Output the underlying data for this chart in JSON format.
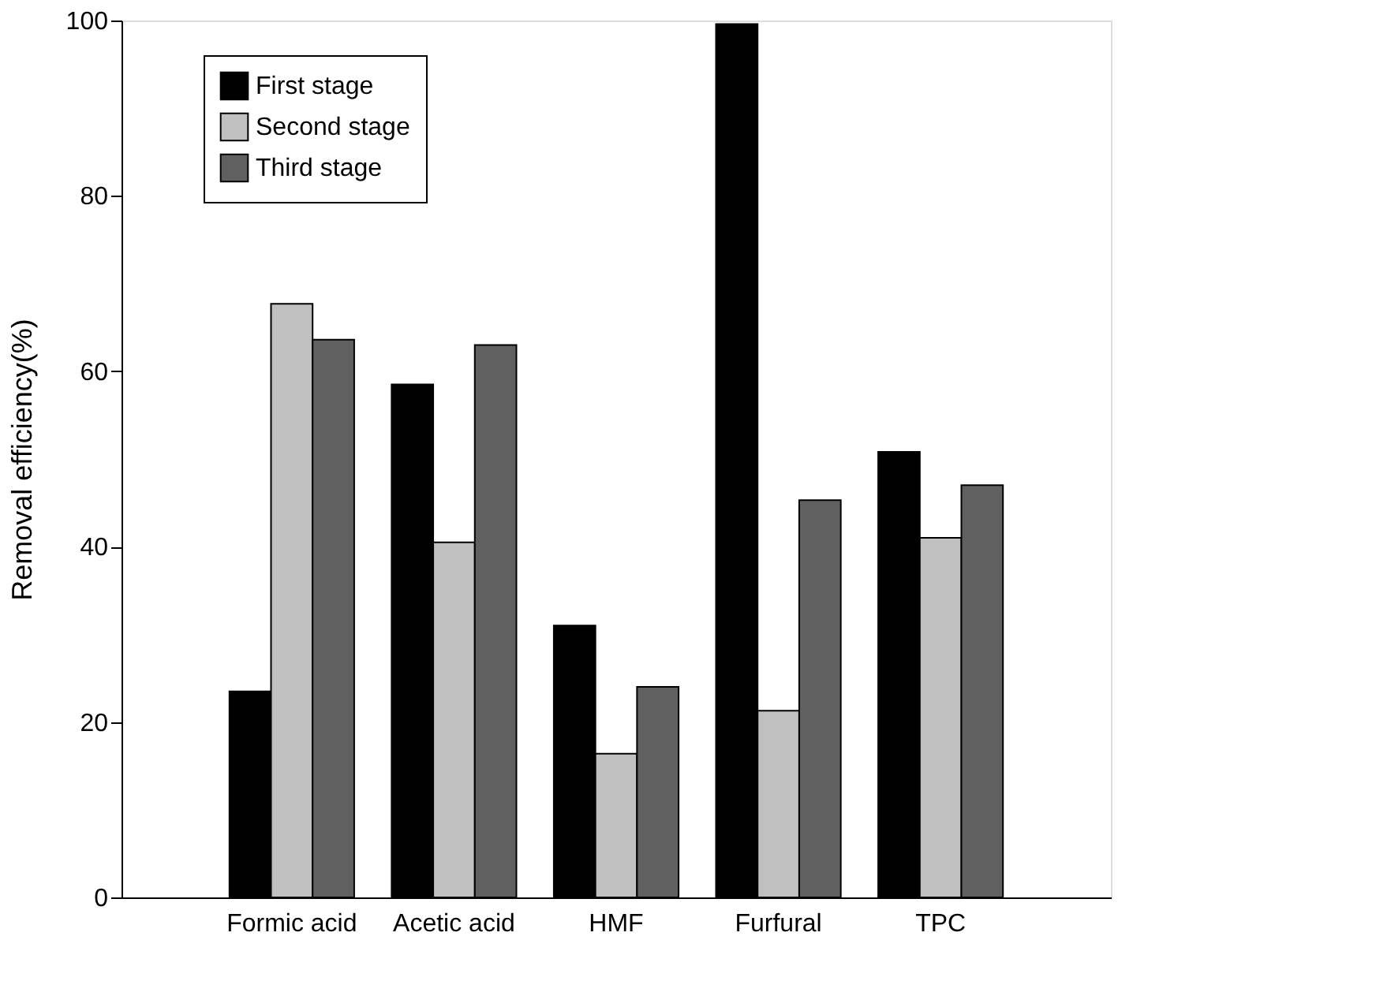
{
  "chart_data": {
    "type": "bar",
    "ylabel": "Removal efficiency(%)",
    "categories": [
      "Formic acid",
      "Acetic acid",
      "HMF",
      "Furfural",
      "TPC"
    ],
    "series": [
      {
        "name": "First stage",
        "color": "#000000",
        "values": [
          23.5,
          58.5,
          31,
          99.6,
          50.8
        ]
      },
      {
        "name": "Second stage",
        "color": "#c0c0c0",
        "values": [
          67.7,
          40.5,
          16.4,
          21.3,
          41
        ]
      },
      {
        "name": "Third stage",
        "color": "#606060",
        "values": [
          63.6,
          63,
          24,
          45.3,
          47
        ]
      }
    ],
    "ylim": [
      0,
      100
    ],
    "yticks": [
      0,
      20,
      40,
      60,
      80,
      100
    ],
    "grid": false,
    "legend": "top left"
  }
}
